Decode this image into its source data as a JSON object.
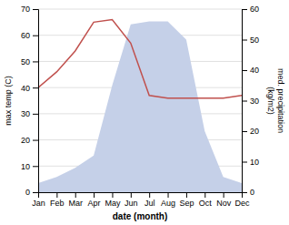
{
  "chart_data": {
    "type": "line",
    "x_label": "date (month)",
    "y_label": "max temp (C)",
    "y2_label": "med. precipitation\n(kg/m2)",
    "categories": [
      "Jan",
      "Feb",
      "Mar",
      "Apr",
      "May",
      "Jun",
      "Jul",
      "Aug",
      "Sep",
      "Oct",
      "Nov",
      "Dec"
    ],
    "series": [
      {
        "type": "area",
        "axis": "y2",
        "color": "#c5d0e8",
        "values": [
          3,
          5,
          8,
          12,
          35,
          55,
          56,
          56,
          50,
          20,
          5,
          3
        ]
      },
      {
        "type": "line",
        "color": "#c0504d",
        "values": [
          40,
          46,
          54,
          65,
          66,
          57,
          37,
          36,
          36,
          36,
          36,
          37
        ]
      }
    ],
    "ylim": [
      0,
      70
    ],
    "yticks": [
      0,
      10,
      20,
      30,
      40,
      50,
      60,
      70
    ],
    "y2lim": [
      0,
      60
    ],
    "y2ticks": [
      0,
      10,
      20,
      30,
      40,
      50,
      60
    ],
    "grid": true
  }
}
